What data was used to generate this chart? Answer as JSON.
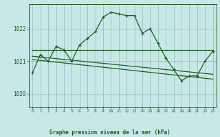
{
  "title": "Graphe pression niveau de la mer (hPa)",
  "bg_color": "#c8e8e8",
  "grid_color": "#88b8b8",
  "line_color": "#1a5c1a",
  "x_labels": [
    "0",
    "1",
    "2",
    "3",
    "4",
    "5",
    "6",
    "7",
    "8",
    "9",
    "10",
    "11",
    "12",
    "13",
    "14",
    "15",
    "16",
    "17",
    "18",
    "19",
    "20",
    "21",
    "22",
    "23"
  ],
  "xlim": [
    -0.5,
    23.5
  ],
  "ylim": [
    1019.6,
    1022.75
  ],
  "yticks": [
    1020,
    1021,
    1022
  ],
  "main_data": [
    [
      0,
      1020.65
    ],
    [
      1,
      1021.2
    ],
    [
      2,
      1021.0
    ],
    [
      3,
      1021.45
    ],
    [
      4,
      1021.35
    ],
    [
      5,
      1021.0
    ],
    [
      6,
      1021.5
    ],
    [
      7,
      1021.7
    ],
    [
      8,
      1021.9
    ],
    [
      9,
      1022.35
    ],
    [
      10,
      1022.5
    ],
    [
      11,
      1022.45
    ],
    [
      12,
      1022.4
    ],
    [
      13,
      1022.4
    ],
    [
      14,
      1021.85
    ],
    [
      15,
      1022.0
    ],
    [
      16,
      1021.55
    ],
    [
      17,
      1021.1
    ],
    [
      18,
      1020.75
    ],
    [
      19,
      1020.4
    ],
    [
      20,
      1020.55
    ],
    [
      21,
      1020.55
    ],
    [
      22,
      1021.0
    ],
    [
      23,
      1021.3
    ]
  ],
  "trend_line1": [
    [
      0,
      1021.35
    ],
    [
      23,
      1021.35
    ]
  ],
  "trend_line2": [
    [
      0,
      1021.15
    ],
    [
      23,
      1020.6
    ]
  ],
  "trend_line3": [
    [
      0,
      1021.05
    ],
    [
      23,
      1020.45
    ]
  ]
}
